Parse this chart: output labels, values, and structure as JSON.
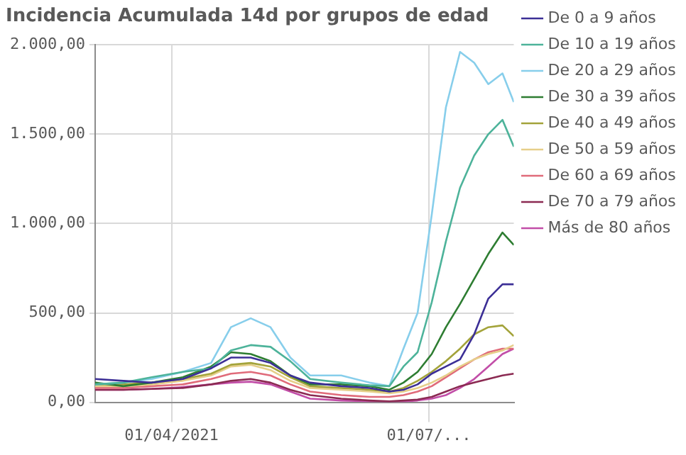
{
  "chart_data": {
    "type": "line",
    "title": "Incidencia Acumulada 14d por grupos de edad",
    "x": [
      "2021-03-05",
      "2021-03-15",
      "2021-03-25",
      "2021-04-05",
      "2021-04-15",
      "2021-04-22",
      "2021-04-29",
      "2021-05-06",
      "2021-05-13",
      "2021-05-20",
      "2021-05-31",
      "2021-06-10",
      "2021-06-17",
      "2021-06-22",
      "2021-06-27",
      "2021-07-02",
      "2021-07-07",
      "2021-07-12",
      "2021-07-17",
      "2021-07-22",
      "2021-07-27",
      "2021-07-31"
    ],
    "xlim": [
      "2021-03-05",
      "2021-07-31"
    ],
    "xticks": [
      {
        "value": "2021-04-01",
        "label": "01/04/2021"
      },
      {
        "value": "2021-07-01",
        "label": "01/07/..."
      }
    ],
    "ylim": [
      0,
      2000
    ],
    "yticks": [
      {
        "value": 0,
        "label": "0,00"
      },
      {
        "value": 500,
        "label": "500,00"
      },
      {
        "value": 1000,
        "label": "1.000,00"
      },
      {
        "value": 1500,
        "label": "1.500,00"
      },
      {
        "value": 2000,
        "label": "2.000,00"
      }
    ],
    "series": [
      {
        "name": "De 0 a 9 años",
        "color": "#3c2f96",
        "values": [
          130,
          120,
          110,
          130,
          190,
          250,
          250,
          220,
          150,
          110,
          90,
          80,
          60,
          70,
          100,
          160,
          200,
          240,
          380,
          580,
          660,
          660
        ]
      },
      {
        "name": "De 10 a 19 años",
        "color": "#4db39a",
        "values": [
          100,
          110,
          140,
          170,
          190,
          290,
          320,
          310,
          230,
          130,
          110,
          95,
          90,
          200,
          280,
          560,
          900,
          1200,
          1380,
          1500,
          1580,
          1430
        ]
      },
      {
        "name": "De 20 a 29 años",
        "color": "#87ceeb",
        "values": [
          100,
          110,
          130,
          170,
          220,
          420,
          470,
          420,
          250,
          150,
          150,
          110,
          90,
          300,
          500,
          1050,
          1650,
          1960,
          1900,
          1780,
          1840,
          1680
        ]
      },
      {
        "name": "De 30 a 39 años",
        "color": "#2e7d32",
        "values": [
          110,
          90,
          110,
          140,
          200,
          280,
          270,
          230,
          150,
          100,
          100,
          90,
          70,
          110,
          170,
          270,
          420,
          550,
          690,
          830,
          950,
          880
        ]
      },
      {
        "name": "De 40 a 49 años",
        "color": "#a3a33a",
        "values": [
          100,
          100,
          110,
          130,
          160,
          210,
          220,
          200,
          140,
          90,
          80,
          70,
          60,
          80,
          120,
          170,
          230,
          300,
          380,
          420,
          430,
          370
        ]
      },
      {
        "name": "De 50 a 59 años",
        "color": "#e6cf8a",
        "values": [
          90,
          90,
          100,
          120,
          150,
          200,
          210,
          180,
          120,
          80,
          70,
          60,
          50,
          60,
          80,
          110,
          150,
          200,
          240,
          270,
          290,
          320
        ]
      },
      {
        "name": "De 60 a 69 años",
        "color": "#e06b7a",
        "values": [
          80,
          80,
          90,
          100,
          130,
          160,
          170,
          150,
          100,
          60,
          40,
          30,
          30,
          40,
          60,
          90,
          140,
          190,
          240,
          280,
          300,
          300
        ]
      },
      {
        "name": "De 70 a 79 años",
        "color": "#8b2a52",
        "values": [
          70,
          70,
          75,
          80,
          100,
          120,
          130,
          110,
          70,
          40,
          20,
          10,
          5,
          10,
          15,
          30,
          60,
          90,
          110,
          130,
          150,
          160
        ]
      },
      {
        "name": "Más de 80 años",
        "color": "#c24ea8",
        "values": [
          70,
          70,
          75,
          85,
          100,
          110,
          115,
          100,
          60,
          20,
          10,
          5,
          5,
          5,
          10,
          20,
          40,
          80,
          130,
          200,
          270,
          300
        ]
      }
    ],
    "grid": true,
    "legend": "right",
    "marker": "none",
    "line_style": "solid"
  }
}
